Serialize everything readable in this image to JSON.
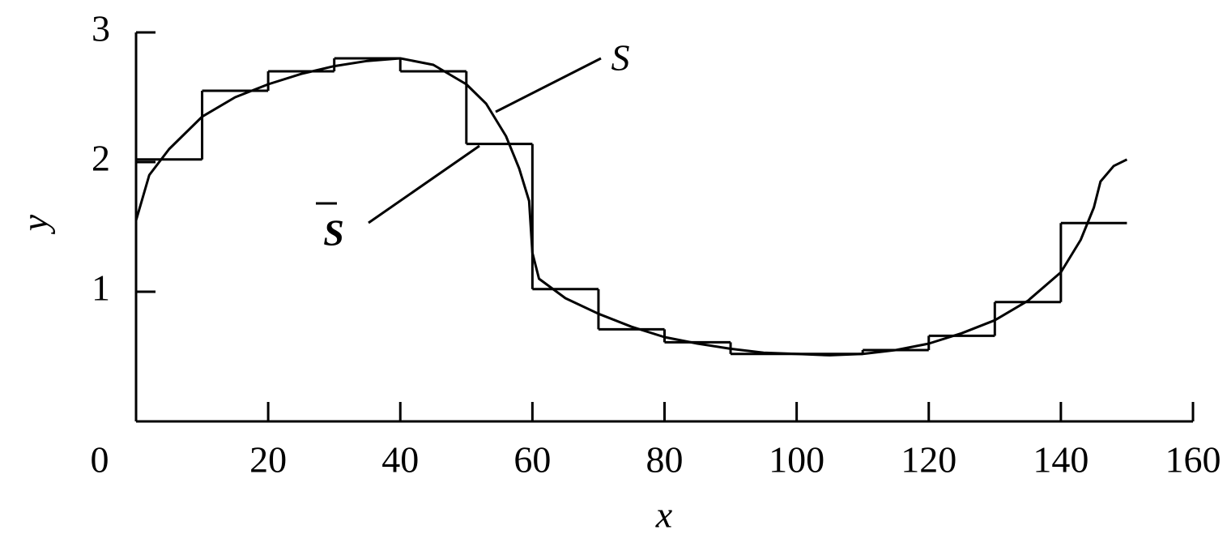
{
  "chart_data": {
    "type": "line",
    "x_label": "x",
    "y_label": "y",
    "xlim": [
      0,
      160
    ],
    "ylim": [
      0,
      3
    ],
    "xticks": [
      0,
      20,
      40,
      60,
      80,
      100,
      120,
      140,
      160
    ],
    "yticks": [
      1,
      2,
      3
    ],
    "color": "#000000",
    "series": [
      {
        "type": "line",
        "x": [
          0,
          2,
          5,
          10,
          15,
          20,
          25,
          30,
          35,
          40,
          45,
          50,
          53,
          56,
          58,
          59.5,
          60,
          61,
          65,
          70,
          75,
          80,
          85,
          90,
          95,
          100,
          105,
          110,
          115,
          120,
          125,
          130,
          135,
          140,
          143,
          145,
          146,
          148,
          150
        ],
        "values": [
          1.55,
          1.9,
          2.1,
          2.35,
          2.5,
          2.6,
          2.68,
          2.74,
          2.78,
          2.8,
          2.75,
          2.6,
          2.45,
          2.2,
          1.95,
          1.7,
          1.3,
          1.1,
          0.95,
          0.83,
          0.73,
          0.65,
          0.6,
          0.56,
          0.53,
          0.52,
          0.51,
          0.52,
          0.55,
          0.6,
          0.68,
          0.78,
          0.93,
          1.15,
          1.4,
          1.65,
          1.85,
          1.97,
          2.02
        ]
      },
      {
        "type": "step",
        "bins": [
          0,
          10,
          20,
          30,
          40,
          50,
          60,
          70,
          80,
          90,
          100,
          110,
          120,
          130,
          140,
          150
        ],
        "values": [
          2.02,
          2.55,
          2.7,
          2.8,
          2.7,
          2.14,
          1.02,
          0.71,
          0.61,
          0.52,
          0.52,
          0.55,
          0.66,
          0.92,
          1.53
        ]
      }
    ],
    "annotations": [
      {
        "text": "S"
      },
      {
        "text": "S"
      }
    ]
  }
}
